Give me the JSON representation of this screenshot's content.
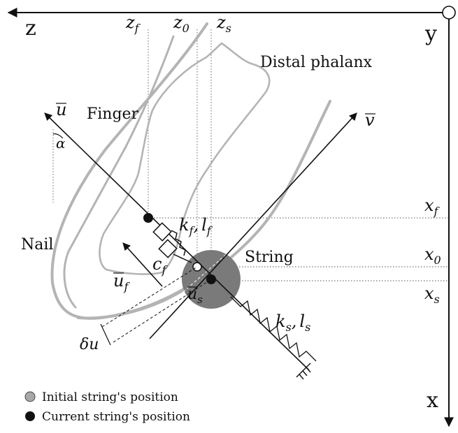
{
  "axes": {
    "z": "z",
    "y": "y",
    "x": "x"
  },
  "positions": {
    "zf": "z",
    "zf_sub": "f",
    "z0": "z",
    "z0_sub": "0",
    "zs": "z",
    "zs_sub": "s",
    "xf": "x",
    "xf_sub": "f",
    "x0": "x",
    "x0_sub": "0",
    "xs": "x",
    "xs_sub": "s"
  },
  "parts": {
    "distal_phalanx": "Distal phalanx",
    "finger": "Finger",
    "nail": "Nail",
    "string": "String"
  },
  "vectors": {
    "u": "u",
    "v": "v",
    "uf": "u",
    "uf_sub": "f",
    "us": "u",
    "us_sub": "s"
  },
  "symbols": {
    "alpha": "α",
    "kf": "k",
    "kf_sub": "f",
    "lf": "l",
    "lf_sub": "f",
    "cf": "c",
    "cf_sub": "f",
    "ks": "k",
    "ks_sub": "s",
    "ls": "l",
    "ls_sub": "s",
    "delta_u": "δu",
    "comma": ","
  },
  "legend": {
    "initial": "Initial string's position",
    "current": "Current string's position"
  },
  "colors": {
    "finger_gray": "#b4b4b4",
    "string_gray": "#7a7a7a",
    "ink": "#111111"
  }
}
